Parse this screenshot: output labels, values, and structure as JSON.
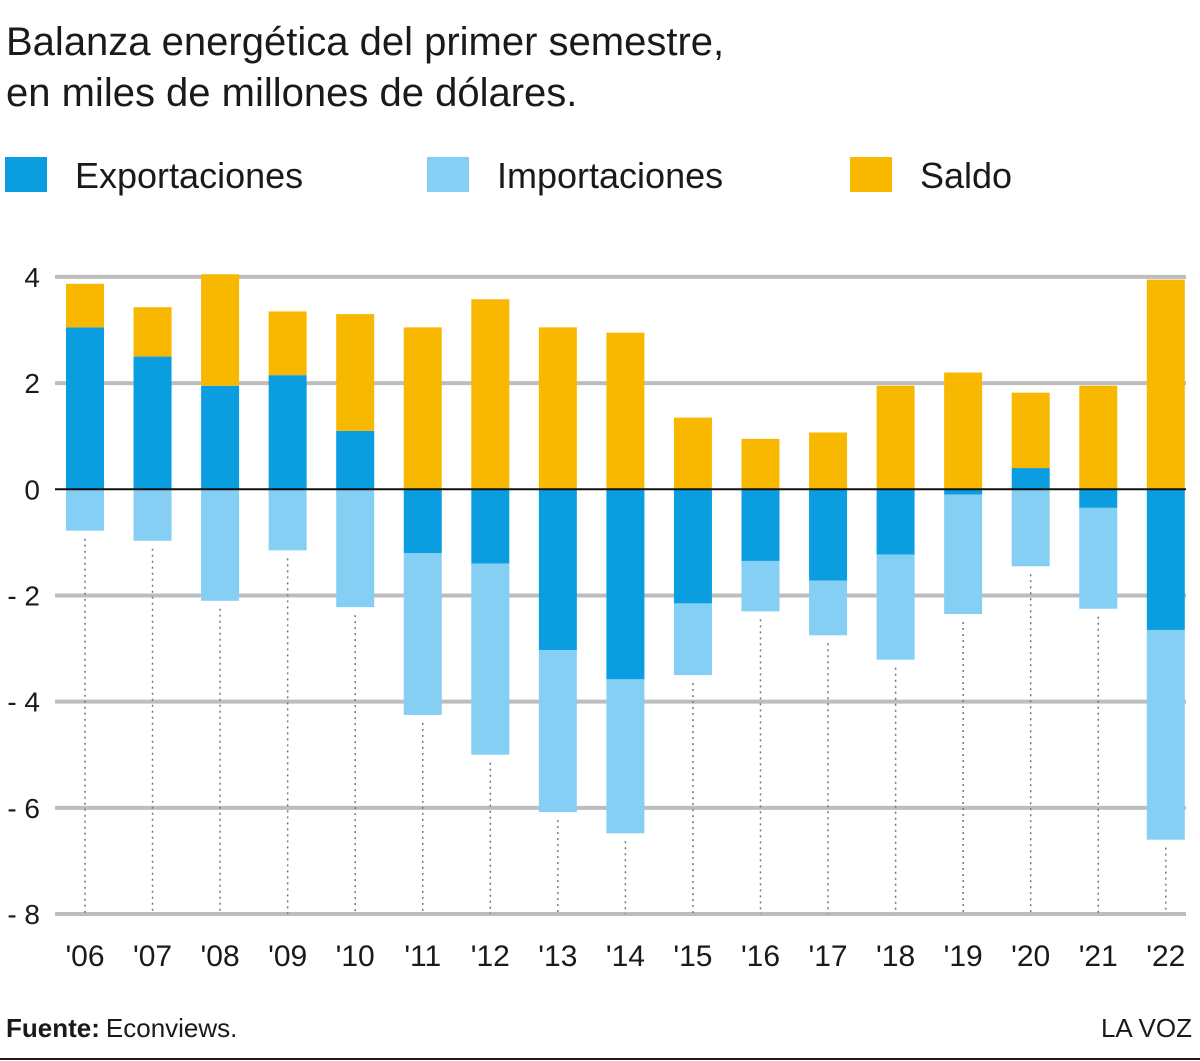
{
  "chart_data": {
    "type": "bar",
    "stacked": true,
    "title": "Balanza energética del primer semestre,",
    "subtitle": "en miles de millones de dólares.",
    "categories": [
      "'06",
      "'07",
      "'08",
      "'09",
      "'10",
      "'11",
      "'12",
      "'13",
      "'14",
      "'15",
      "'16",
      "'17",
      "'18",
      "'19",
      "'20",
      "'21",
      "'22"
    ],
    "series": [
      {
        "name": "Exportaciones",
        "color": "#0a9ee0",
        "values": [
          3.05,
          2.5,
          1.95,
          2.15,
          1.1,
          -1.2,
          -1.4,
          -3.03,
          -3.58,
          -2.15,
          -1.35,
          -1.72,
          -1.23,
          -0.1,
          0.4,
          -0.35,
          -2.65
        ]
      },
      {
        "name": "Importaciones",
        "color": "#85cff5",
        "values": [
          -0.78,
          -0.97,
          -2.1,
          -1.15,
          -2.22,
          -3.05,
          -3.6,
          -3.05,
          -2.9,
          -1.35,
          -0.95,
          -1.03,
          -1.98,
          -2.25,
          -1.45,
          -1.9,
          -3.95
        ]
      },
      {
        "name": "Saldo",
        "color": "#f8b800",
        "values": [
          0.82,
          0.93,
          2.1,
          1.2,
          2.2,
          3.05,
          3.58,
          3.05,
          2.95,
          1.35,
          0.95,
          1.07,
          1.95,
          2.2,
          1.42,
          1.95,
          3.95
        ]
      }
    ],
    "ylim": [
      -8,
      4.3
    ],
    "yticks": [
      4,
      2,
      0,
      {
        "value": -2,
        "label": "- 2"
      },
      {
        "value": -4,
        "label": "- 4"
      },
      {
        "value": -6,
        "label": "- 6"
      },
      {
        "value": -8,
        "label": "- 8"
      }
    ],
    "grid": true,
    "source_label": "Fuente:",
    "source": "Econviews.",
    "brand": "LA VOZ"
  }
}
